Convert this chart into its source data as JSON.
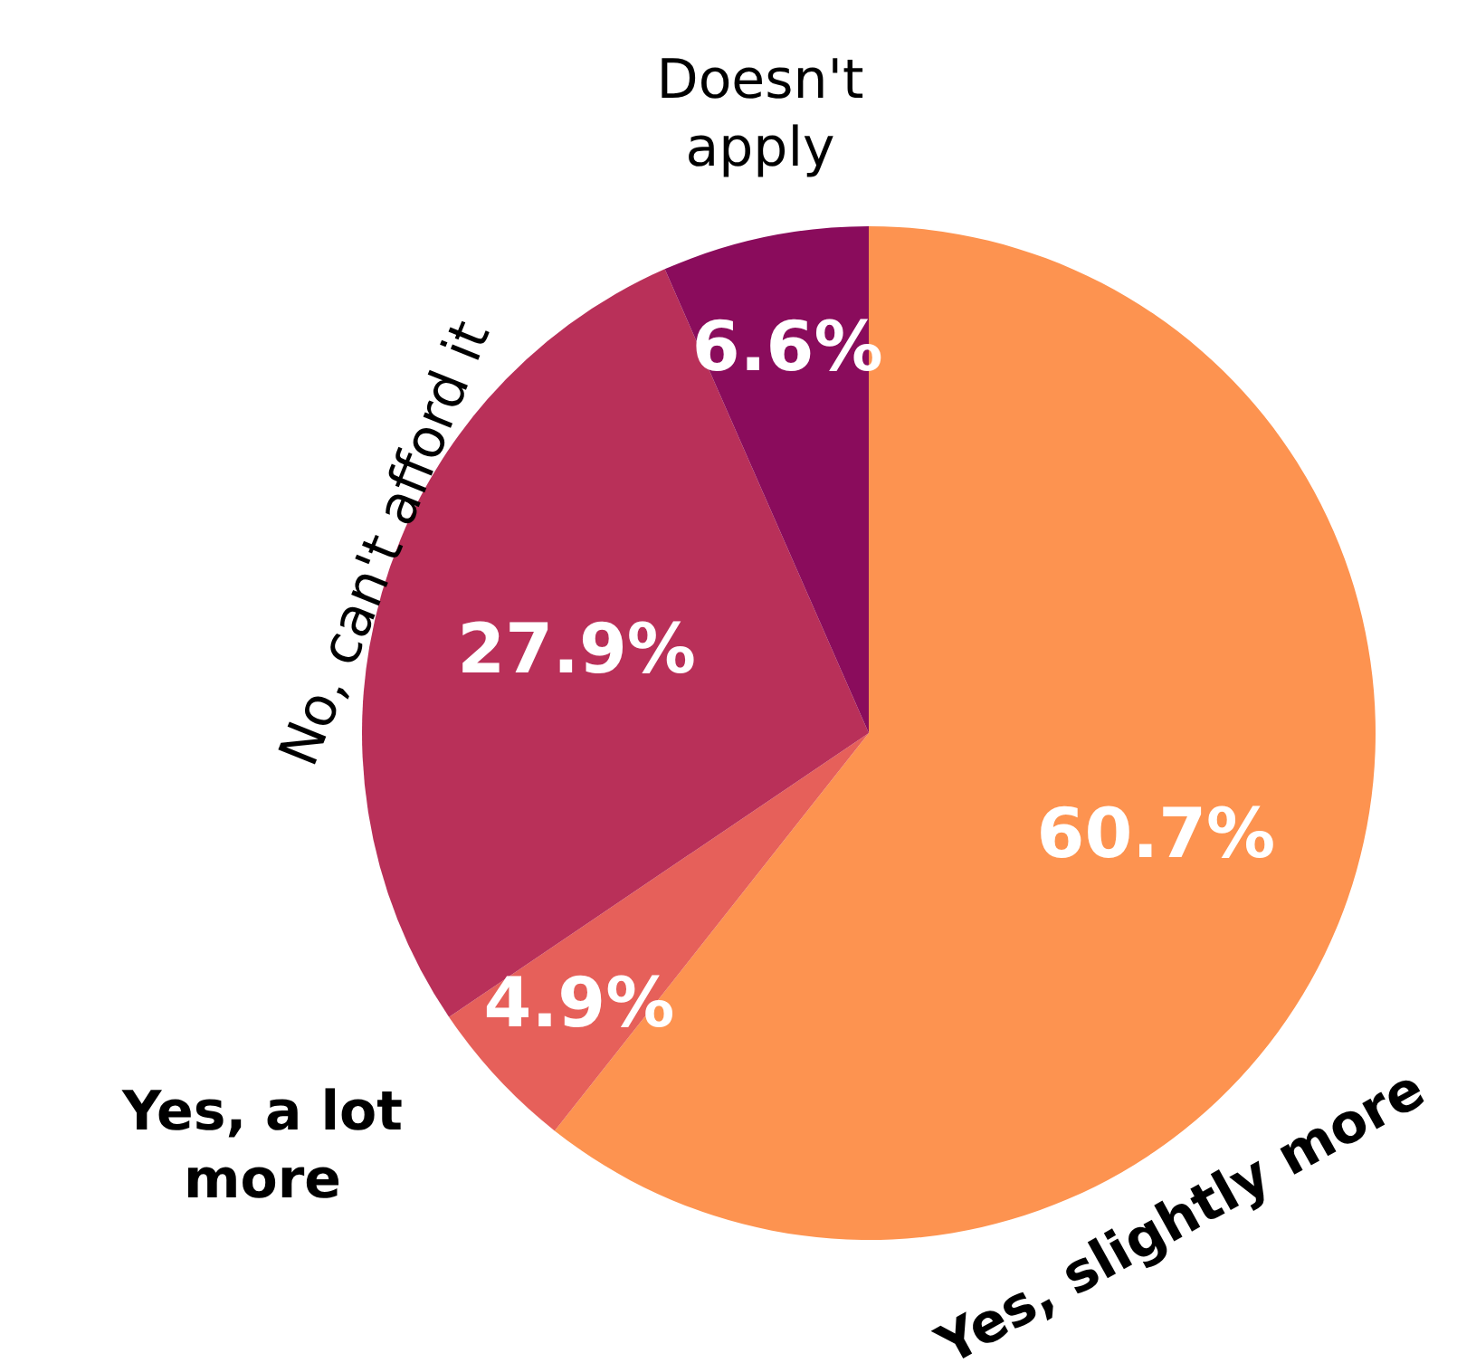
{
  "chart_data": {
    "type": "pie",
    "categories": [
      "Yes, slightly more",
      "Yes, a lot more",
      "No, can't afford it",
      "Doesn't apply"
    ],
    "values": [
      60.7,
      4.9,
      27.9,
      6.6
    ],
    "colors": [
      "#fd9350",
      "#e6605a",
      "#b93059",
      "#8a0c5c"
    ],
    "value_labels": [
      "60.7%",
      "4.9%",
      "27.9%",
      "6.6%"
    ]
  }
}
